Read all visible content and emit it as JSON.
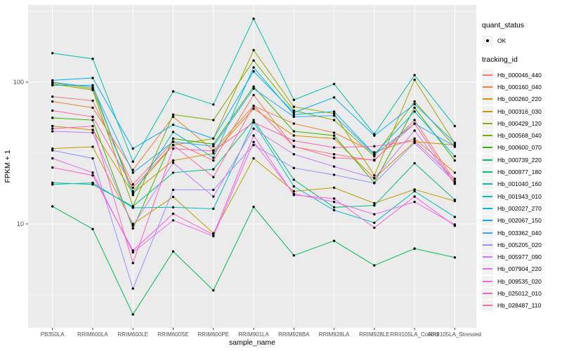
{
  "y_axis": {
    "label": "FPKM + 1",
    "tick_labels": [
      "100",
      "10"
    ]
  },
  "x_axis": {
    "label": "sample_name"
  },
  "legend": {
    "quant_status_title": "quant_status",
    "quant_status_items": [
      {
        "label": "OK",
        "marker": "black-point"
      }
    ],
    "tracking_title": "tracking_id"
  },
  "chart_data": {
    "type": "line",
    "title": "",
    "xlabel": "sample_name",
    "ylabel": "FPKM + 1",
    "y_scale": "log10",
    "y_major_ticks": [
      100,
      10
    ],
    "y_minor_ticks": [
      316.2,
      31.62,
      3.162
    ],
    "ylim": [
      1.85,
      350
    ],
    "grid": true,
    "legend_position": "right",
    "panel_bg": "#EBEBEB",
    "grid_color": "#FFFFFF",
    "point_color": "#000000",
    "tick_label_color": "#4D4D4D",
    "categories": [
      "PB350LA",
      "RRIM600LA",
      "RRIM600LE",
      "RRIM600SE",
      "RRIM600PE",
      "RRIM901LA",
      "RRIM928BA",
      "RRIM928LA",
      "RRIM928LE",
      "RRII105LA_Control",
      "RRII105LA_Stressed"
    ],
    "series": [
      {
        "name": "Hb_000046_440",
        "color": "#F8766D",
        "values": [
          79,
          74,
          19,
          38,
          28,
          81,
          35,
          31,
          28,
          54,
          20
        ]
      },
      {
        "name": "Hb_000160_040",
        "color": "#EA8331",
        "values": [
          73,
          66,
          24,
          57,
          33,
          68,
          51,
          44,
          32,
          40,
          23
        ]
      },
      {
        "name": "Hb_000260_220",
        "color": "#D89000",
        "values": [
          49,
          46,
          16.5,
          28,
          31.5,
          65,
          42,
          40,
          21,
          38,
          36
        ]
      },
      {
        "name": "Hb_000316_030",
        "color": "#C09B00",
        "values": [
          34,
          35,
          10,
          15.5,
          8.6,
          29,
          17,
          18,
          14,
          17.5,
          14.5
        ]
      },
      {
        "name": "Hb_000429_120",
        "color": "#A3A500",
        "values": [
          99,
          90,
          17,
          36,
          40,
          168,
          67,
          60,
          22,
          104,
          37
        ]
      },
      {
        "name": "Hb_000568_040",
        "color": "#7CAE00",
        "values": [
          97,
          88,
          13.3,
          59,
          54,
          142,
          63,
          54,
          30,
          73,
          35
        ]
      },
      {
        "name": "Hb_000600_070",
        "color": "#39B600",
        "values": [
          56,
          54,
          9.3,
          40,
          36.5,
          93,
          45,
          42,
          19.5,
          66,
          28
        ]
      },
      {
        "name": "Hb_000739_220",
        "color": "#00BB4E",
        "values": [
          13.3,
          9.2,
          2.3,
          6.4,
          3.4,
          13.2,
          6,
          7.6,
          5.1,
          6.7,
          5.8
        ]
      },
      {
        "name": "Hb_000977_180",
        "color": "#00BF7D",
        "values": [
          19.5,
          19,
          13.3,
          23,
          24.3,
          54,
          20.5,
          13.1,
          13.5,
          26.8,
          14.8
        ]
      },
      {
        "name": "Hb_001040_160",
        "color": "#00C1A3",
        "values": [
          160,
          146,
          27.5,
          86,
          69.5,
          280,
          75,
          97,
          43,
          112,
          49
        ]
      },
      {
        "name": "Hb_001943_010",
        "color": "#00BFC4",
        "values": [
          19,
          19.5,
          13,
          13.1,
          12.8,
          52,
          18.4,
          12.5,
          10.2,
          17,
          11.2
        ]
      },
      {
        "name": "Hb_002027_270",
        "color": "#00BADE",
        "values": [
          95,
          95,
          16,
          44.5,
          29.3,
          127,
          59,
          62,
          31,
          62,
          30
        ]
      },
      {
        "name": "Hb_002067_150",
        "color": "#00B0F6",
        "values": [
          103,
          107,
          34,
          50,
          40,
          119,
          61,
          78,
          42,
          70,
          37.3
        ]
      },
      {
        "name": "Hb_003362_040",
        "color": "#35A2FF",
        "values": [
          100,
          92,
          23,
          38,
          35.3,
          90,
          57,
          58,
          30.8,
          51,
          35.3
        ]
      },
      {
        "name": "Hb_005205_020",
        "color": "#9590FF",
        "values": [
          33,
          29,
          3.5,
          17.4,
          17.4,
          36,
          24.8,
          22.2,
          19.4,
          37.3,
          19.8
        ]
      },
      {
        "name": "Hb_005977_090",
        "color": "#C77CFF",
        "values": [
          45,
          44,
          9.7,
          27,
          15.6,
          47,
          31,
          25.4,
          21,
          45.5,
          19.2
        ]
      },
      {
        "name": "Hb_007904_220",
        "color": "#E76BF3",
        "values": [
          29,
          23,
          6.3,
          10.6,
          8.2,
          37.8,
          16.3,
          14.3,
          11.7,
          14.3,
          9.9
        ]
      },
      {
        "name": "Hb_009535_020",
        "color": "#FA62DB",
        "values": [
          25,
          22,
          6.5,
          11.8,
          8.4,
          42,
          16,
          15.1,
          9.4,
          15.6,
          9.7
        ]
      },
      {
        "name": "Hb_025012_010",
        "color": "#FF62BC",
        "values": [
          47,
          49,
          5.3,
          34,
          32.7,
          52,
          38.6,
          34.6,
          35.3,
          38.5,
          20.8
        ]
      },
      {
        "name": "Hb_028487_110",
        "color": "#FF6A98",
        "values": [
          63,
          57,
          18,
          36,
          21.4,
          68,
          35.3,
          29.3,
          28.3,
          51,
          19.2
        ]
      }
    ]
  }
}
